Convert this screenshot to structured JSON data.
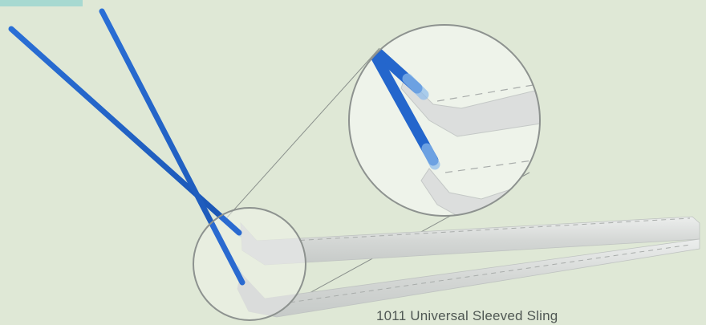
{
  "product": {
    "caption": "1011 Universal Sleeved Sling"
  },
  "colors": {
    "background": "#dfe8d6",
    "accent_tab": "#a7d9d1",
    "needle_blue": "#1f5fc4",
    "sling_gray": "#d5d8d6"
  },
  "icons": [
    "sling-needle-illustration",
    "magnifier-circle"
  ]
}
